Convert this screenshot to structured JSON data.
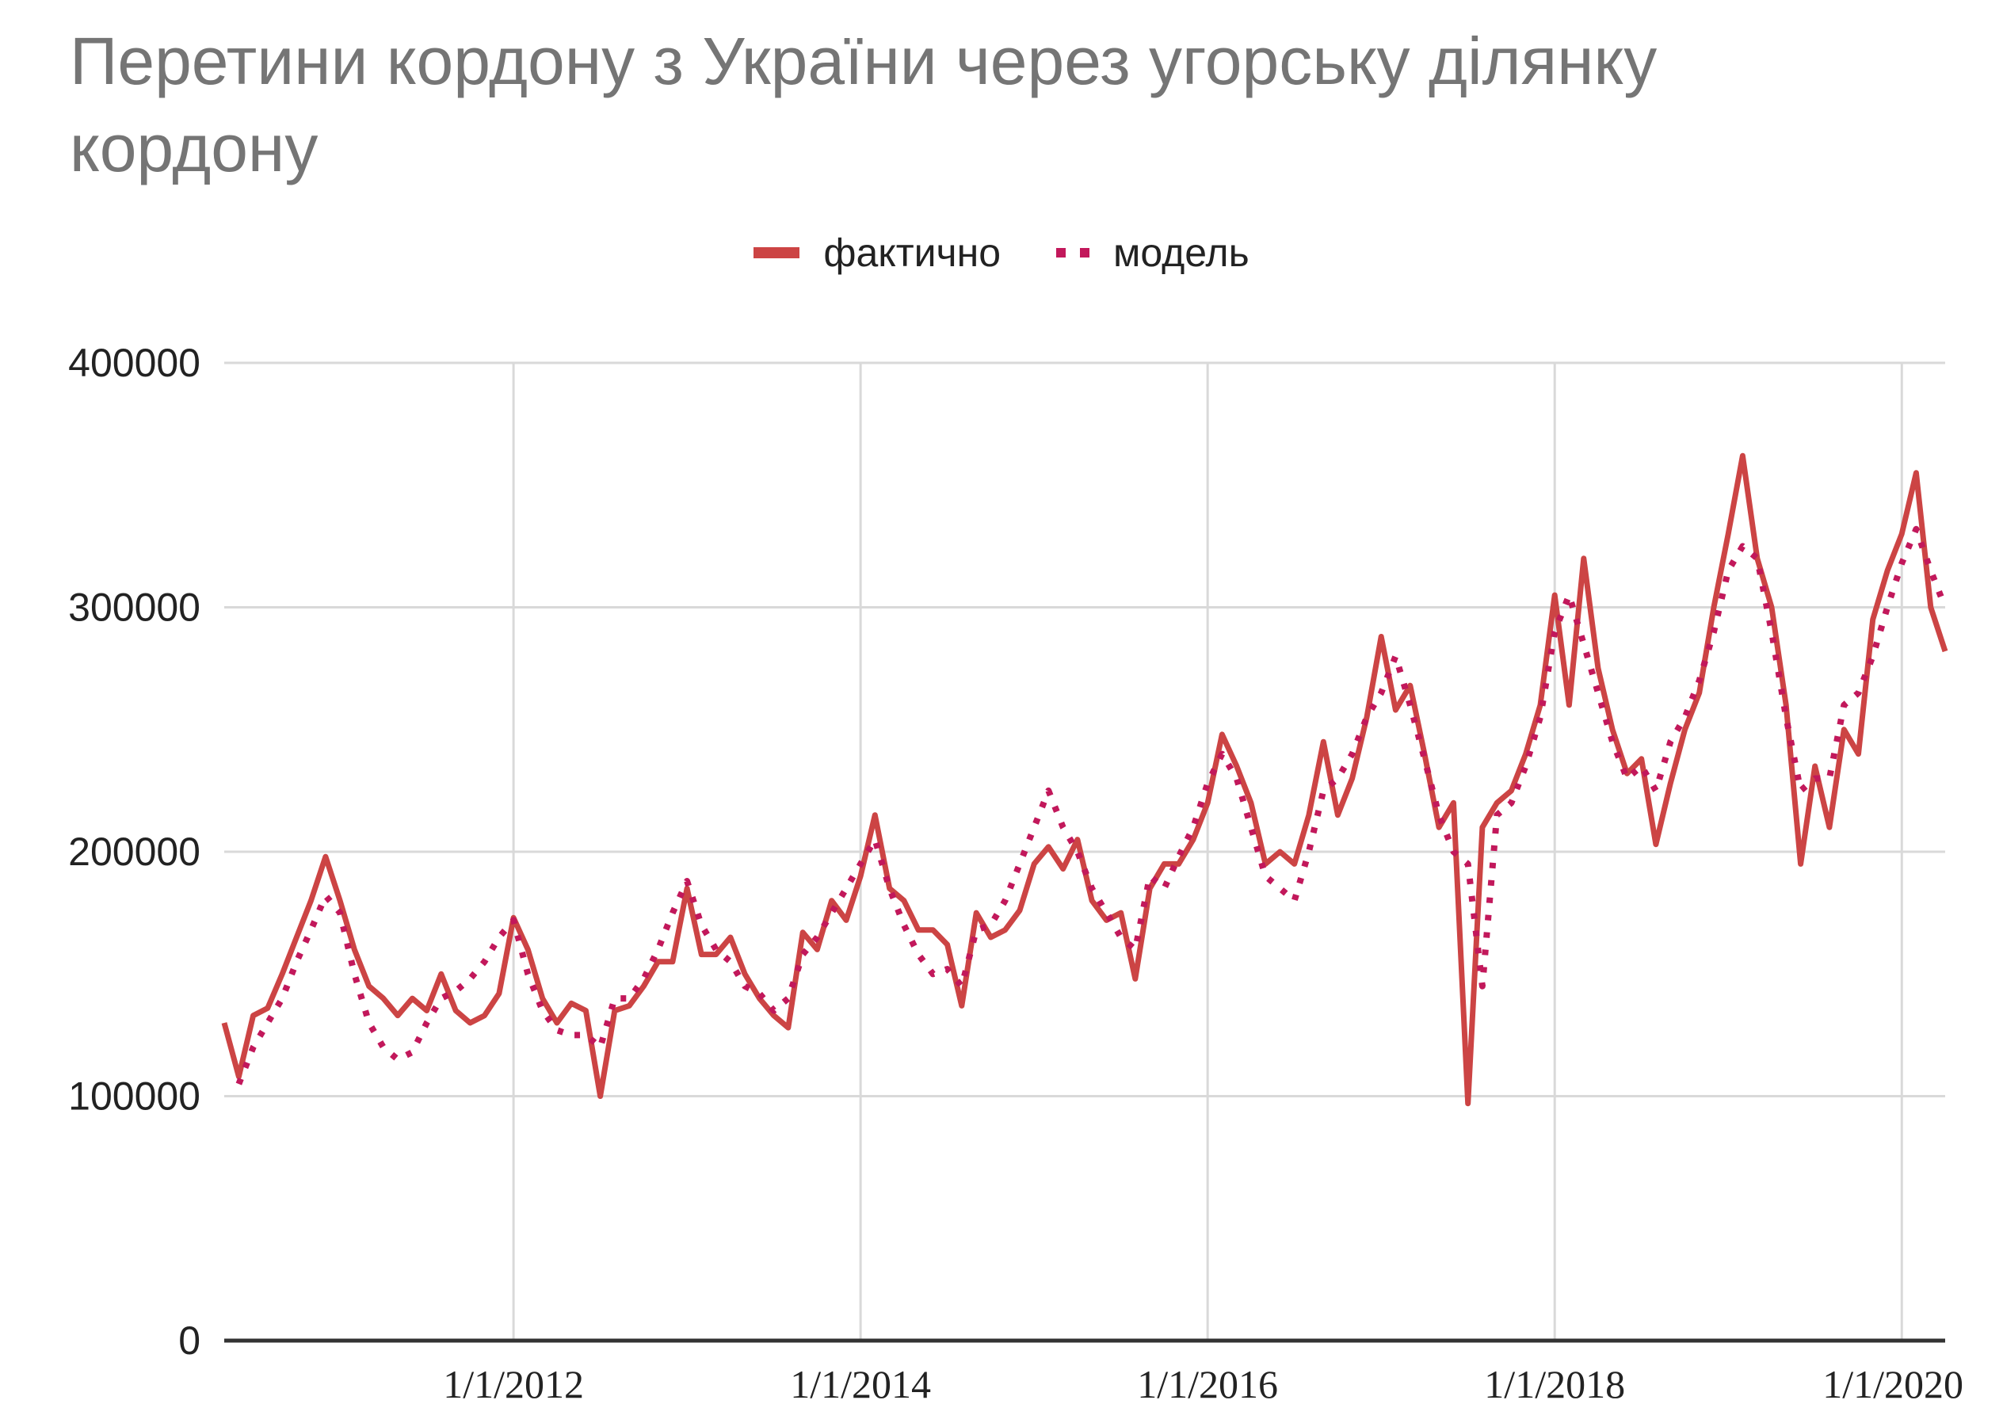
{
  "chart_data": {
    "type": "line",
    "title": "Перетини кордону з України через  угорську ділянку кордону",
    "xlabel": "",
    "ylabel": "",
    "ylim": [
      0,
      400000
    ],
    "y_ticks": [
      "0",
      "100000",
      "200000",
      "300000",
      "400000"
    ],
    "x_ticks": [
      {
        "label": "1/1/2012",
        "value": 2012.0
      },
      {
        "label": "1/1/2014",
        "value": 2014.0
      },
      {
        "label": "1/1/2016",
        "value": 2016.0
      },
      {
        "label": "1/1/2018",
        "value": 2018.0
      },
      {
        "label": "1/1/2020",
        "value": 2020.0
      }
    ],
    "grid": true,
    "legend_position": "top",
    "colors": {
      "actual": "#cc4444",
      "model": "#c2185b",
      "grid": "#d9d9d9",
      "axis": "#333333",
      "title": "#757575"
    },
    "series": [
      {
        "name": "фактично",
        "style": "solid",
        "points": [
          [
            2010.333,
            130000
          ],
          [
            2010.417,
            108000
          ],
          [
            2010.5,
            133000
          ],
          [
            2010.583,
            136000
          ],
          [
            2010.667,
            150000
          ],
          [
            2010.75,
            165000
          ],
          [
            2010.833,
            180000
          ],
          [
            2010.917,
            198000
          ],
          [
            2011.0,
            180000
          ],
          [
            2011.083,
            160000
          ],
          [
            2011.167,
            145000
          ],
          [
            2011.25,
            140000
          ],
          [
            2011.333,
            133000
          ],
          [
            2011.417,
            140000
          ],
          [
            2011.5,
            135000
          ],
          [
            2011.583,
            150000
          ],
          [
            2011.667,
            135000
          ],
          [
            2011.75,
            130000
          ],
          [
            2011.833,
            133000
          ],
          [
            2011.917,
            142000
          ],
          [
            2012.0,
            173000
          ],
          [
            2012.083,
            160000
          ],
          [
            2012.167,
            140000
          ],
          [
            2012.25,
            130000
          ],
          [
            2012.333,
            138000
          ],
          [
            2012.417,
            135000
          ],
          [
            2012.5,
            100000
          ],
          [
            2012.583,
            135000
          ],
          [
            2012.667,
            137000
          ],
          [
            2012.75,
            145000
          ],
          [
            2012.833,
            155000
          ],
          [
            2012.917,
            155000
          ],
          [
            2013.0,
            185000
          ],
          [
            2013.083,
            158000
          ],
          [
            2013.167,
            158000
          ],
          [
            2013.25,
            165000
          ],
          [
            2013.333,
            150000
          ],
          [
            2013.417,
            140000
          ],
          [
            2013.5,
            133000
          ],
          [
            2013.583,
            128000
          ],
          [
            2013.667,
            167000
          ],
          [
            2013.75,
            160000
          ],
          [
            2013.833,
            180000
          ],
          [
            2013.917,
            172000
          ],
          [
            2014.0,
            190000
          ],
          [
            2014.083,
            215000
          ],
          [
            2014.167,
            185000
          ],
          [
            2014.25,
            180000
          ],
          [
            2014.333,
            168000
          ],
          [
            2014.417,
            168000
          ],
          [
            2014.5,
            162000
          ],
          [
            2014.583,
            137000
          ],
          [
            2014.667,
            175000
          ],
          [
            2014.75,
            165000
          ],
          [
            2014.833,
            168000
          ],
          [
            2014.917,
            176000
          ],
          [
            2015.0,
            195000
          ],
          [
            2015.083,
            202000
          ],
          [
            2015.167,
            193000
          ],
          [
            2015.25,
            205000
          ],
          [
            2015.333,
            180000
          ],
          [
            2015.417,
            172000
          ],
          [
            2015.5,
            175000
          ],
          [
            2015.583,
            148000
          ],
          [
            2015.667,
            185000
          ],
          [
            2015.75,
            195000
          ],
          [
            2015.833,
            195000
          ],
          [
            2015.917,
            205000
          ],
          [
            2016.0,
            220000
          ],
          [
            2016.083,
            248000
          ],
          [
            2016.167,
            235000
          ],
          [
            2016.25,
            220000
          ],
          [
            2016.333,
            195000
          ],
          [
            2016.417,
            200000
          ],
          [
            2016.5,
            195000
          ],
          [
            2016.583,
            215000
          ],
          [
            2016.667,
            245000
          ],
          [
            2016.75,
            215000
          ],
          [
            2016.833,
            230000
          ],
          [
            2016.917,
            255000
          ],
          [
            2017.0,
            288000
          ],
          [
            2017.083,
            258000
          ],
          [
            2017.167,
            268000
          ],
          [
            2017.25,
            240000
          ],
          [
            2017.333,
            210000
          ],
          [
            2017.417,
            220000
          ],
          [
            2017.5,
            97000
          ],
          [
            2017.583,
            210000
          ],
          [
            2017.667,
            220000
          ],
          [
            2017.75,
            225000
          ],
          [
            2017.833,
            240000
          ],
          [
            2017.917,
            260000
          ],
          [
            2018.0,
            305000
          ],
          [
            2018.083,
            260000
          ],
          [
            2018.167,
            320000
          ],
          [
            2018.25,
            275000
          ],
          [
            2018.333,
            250000
          ],
          [
            2018.417,
            232000
          ],
          [
            2018.5,
            238000
          ],
          [
            2018.583,
            203000
          ],
          [
            2018.667,
            228000
          ],
          [
            2018.75,
            250000
          ],
          [
            2018.833,
            265000
          ],
          [
            2018.917,
            300000
          ],
          [
            2019.0,
            330000
          ],
          [
            2019.083,
            362000
          ],
          [
            2019.167,
            320000
          ],
          [
            2019.25,
            300000
          ],
          [
            2019.333,
            260000
          ],
          [
            2019.417,
            195000
          ],
          [
            2019.5,
            235000
          ],
          [
            2019.583,
            210000
          ],
          [
            2019.667,
            250000
          ],
          [
            2019.75,
            240000
          ],
          [
            2019.833,
            295000
          ],
          [
            2019.917,
            315000
          ],
          [
            2020.0,
            330000
          ],
          [
            2020.083,
            355000
          ],
          [
            2020.167,
            300000
          ],
          [
            2020.25,
            282000
          ]
        ]
      },
      {
        "name": "модель",
        "style": "dotted",
        "points": [
          [
            2010.417,
            105000
          ],
          [
            2010.5,
            120000
          ],
          [
            2010.583,
            130000
          ],
          [
            2010.667,
            140000
          ],
          [
            2010.75,
            155000
          ],
          [
            2010.833,
            168000
          ],
          [
            2010.917,
            182000
          ],
          [
            2011.0,
            175000
          ],
          [
            2011.083,
            150000
          ],
          [
            2011.167,
            130000
          ],
          [
            2011.25,
            120000
          ],
          [
            2011.333,
            115000
          ],
          [
            2011.417,
            118000
          ],
          [
            2011.5,
            130000
          ],
          [
            2011.583,
            140000
          ],
          [
            2011.667,
            143000
          ],
          [
            2011.75,
            148000
          ],
          [
            2011.833,
            155000
          ],
          [
            2011.917,
            165000
          ],
          [
            2012.0,
            172000
          ],
          [
            2012.083,
            150000
          ],
          [
            2012.167,
            135000
          ],
          [
            2012.25,
            127000
          ],
          [
            2012.333,
            125000
          ],
          [
            2012.417,
            125000
          ],
          [
            2012.5,
            120000
          ],
          [
            2012.583,
            140000
          ],
          [
            2012.667,
            140000
          ],
          [
            2012.75,
            148000
          ],
          [
            2012.833,
            160000
          ],
          [
            2012.917,
            175000
          ],
          [
            2013.0,
            188000
          ],
          [
            2013.083,
            170000
          ],
          [
            2013.167,
            160000
          ],
          [
            2013.25,
            155000
          ],
          [
            2013.333,
            145000
          ],
          [
            2013.417,
            142000
          ],
          [
            2013.5,
            135000
          ],
          [
            2013.583,
            140000
          ],
          [
            2013.667,
            158000
          ],
          [
            2013.75,
            165000
          ],
          [
            2013.833,
            175000
          ],
          [
            2013.917,
            185000
          ],
          [
            2014.0,
            195000
          ],
          [
            2014.083,
            205000
          ],
          [
            2014.167,
            185000
          ],
          [
            2014.25,
            170000
          ],
          [
            2014.333,
            158000
          ],
          [
            2014.417,
            150000
          ],
          [
            2014.5,
            152000
          ],
          [
            2014.583,
            145000
          ],
          [
            2014.667,
            168000
          ],
          [
            2014.75,
            170000
          ],
          [
            2014.833,
            180000
          ],
          [
            2014.917,
            195000
          ],
          [
            2015.0,
            210000
          ],
          [
            2015.083,
            225000
          ],
          [
            2015.167,
            210000
          ],
          [
            2015.25,
            200000
          ],
          [
            2015.333,
            185000
          ],
          [
            2015.417,
            175000
          ],
          [
            2015.5,
            165000
          ],
          [
            2015.583,
            160000
          ],
          [
            2015.667,
            190000
          ],
          [
            2015.75,
            185000
          ],
          [
            2015.833,
            198000
          ],
          [
            2015.917,
            210000
          ],
          [
            2016.0,
            228000
          ],
          [
            2016.083,
            240000
          ],
          [
            2016.167,
            230000
          ],
          [
            2016.25,
            210000
          ],
          [
            2016.333,
            190000
          ],
          [
            2016.417,
            185000
          ],
          [
            2016.5,
            180000
          ],
          [
            2016.583,
            200000
          ],
          [
            2016.667,
            225000
          ],
          [
            2016.75,
            230000
          ],
          [
            2016.833,
            240000
          ],
          [
            2016.917,
            255000
          ],
          [
            2017.0,
            265000
          ],
          [
            2017.083,
            280000
          ],
          [
            2017.167,
            260000
          ],
          [
            2017.25,
            238000
          ],
          [
            2017.333,
            215000
          ],
          [
            2017.417,
            200000
          ],
          [
            2017.5,
            195000
          ],
          [
            2017.583,
            145000
          ],
          [
            2017.667,
            215000
          ],
          [
            2017.75,
            220000
          ],
          [
            2017.833,
            235000
          ],
          [
            2017.917,
            255000
          ],
          [
            2018.0,
            290000
          ],
          [
            2018.083,
            305000
          ],
          [
            2018.167,
            285000
          ],
          [
            2018.25,
            265000
          ],
          [
            2018.333,
            245000
          ],
          [
            2018.417,
            230000
          ],
          [
            2018.5,
            235000
          ],
          [
            2018.583,
            225000
          ],
          [
            2018.667,
            245000
          ],
          [
            2018.75,
            255000
          ],
          [
            2018.833,
            270000
          ],
          [
            2018.917,
            290000
          ],
          [
            2019.0,
            315000
          ],
          [
            2019.083,
            325000
          ],
          [
            2019.167,
            320000
          ],
          [
            2019.25,
            290000
          ],
          [
            2019.333,
            255000
          ],
          [
            2019.417,
            225000
          ],
          [
            2019.5,
            230000
          ],
          [
            2019.583,
            230000
          ],
          [
            2019.667,
            260000
          ],
          [
            2019.75,
            265000
          ],
          [
            2019.833,
            280000
          ],
          [
            2019.917,
            300000
          ],
          [
            2020.0,
            318000
          ],
          [
            2020.083,
            332000
          ],
          [
            2020.167,
            315000
          ],
          [
            2020.25,
            300000
          ]
        ]
      }
    ]
  }
}
